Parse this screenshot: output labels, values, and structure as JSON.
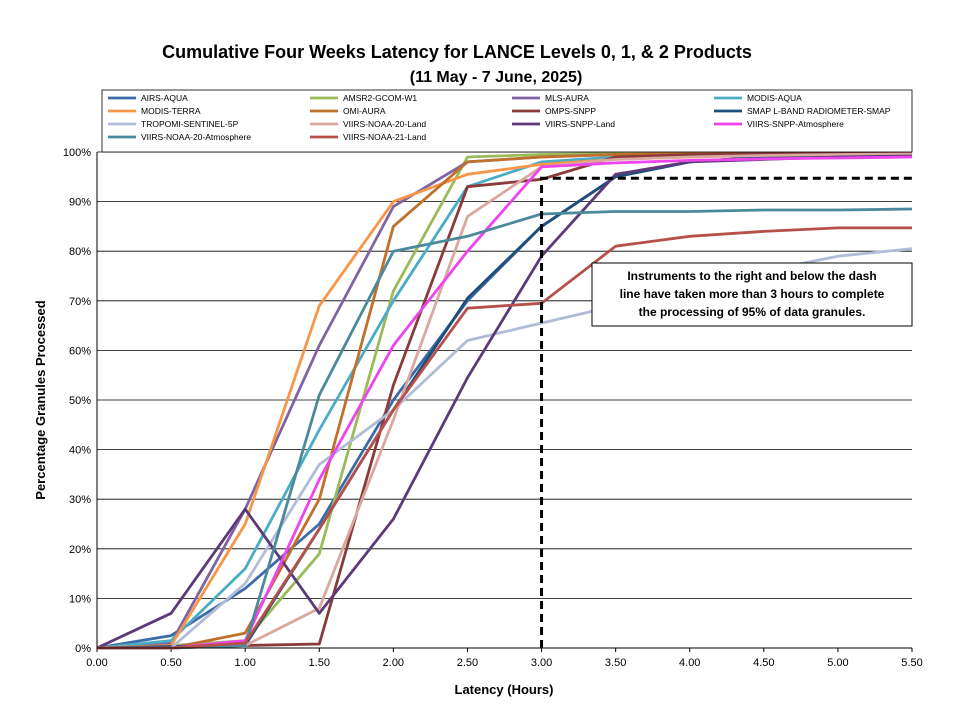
{
  "chart_data": {
    "type": "line",
    "title": "Cumulative Four Weeks Latency  for LANCE Levels 0, 1, & 2 Products",
    "subtitle": "(11  May   - 7  June,  2025)",
    "xlabel": "Latency (Hours)",
    "ylabel": "Percentage Granules Processed",
    "xlim": [
      0,
      5.5
    ],
    "ylim": [
      0,
      100
    ],
    "x_ticks": [
      "0.00",
      "0.50",
      "1.00",
      "1.50",
      "2.00",
      "2.50",
      "3.00",
      "3.50",
      "4.00",
      "4.50",
      "5.00",
      "5.50"
    ],
    "y_ticks": [
      "0%",
      "10%",
      "20%",
      "30%",
      "40%",
      "50%",
      "60%",
      "70%",
      "80%",
      "90%",
      "100%"
    ],
    "grid": "horizontal",
    "legend_position": "top",
    "x": [
      0,
      0.5,
      1.0,
      1.5,
      2.0,
      2.5,
      3.0,
      3.5,
      4.0,
      4.5,
      5.0,
      5.5
    ],
    "series": [
      {
        "name": "AIRS-AQUA",
        "color": "#3d6aa8",
        "values": [
          0,
          2.5,
          12,
          25,
          50,
          70,
          85,
          95,
          98,
          99,
          99.5,
          99.7
        ]
      },
      {
        "name": "AMSR2-GCOM-W1",
        "color": "#9bbb59",
        "values": [
          0,
          0.5,
          1.5,
          19,
          72,
          99,
          99.5,
          99.7,
          99.8,
          99.9,
          99.9,
          99.9
        ]
      },
      {
        "name": "MLS-AURA",
        "color": "#8064a2",
        "values": [
          0,
          1,
          28,
          61,
          89,
          98,
          99,
          99.5,
          99.7,
          99.8,
          99.9,
          99.9
        ]
      },
      {
        "name": "MODIS-AQUA",
        "color": "#4bacc6",
        "values": [
          0,
          1.5,
          16,
          44,
          70,
          93,
          98,
          99,
          99.5,
          99.7,
          99.8,
          99.9
        ]
      },
      {
        "name": "MODIS-TERRA",
        "color": "#f79646",
        "values": [
          0,
          0.5,
          25,
          69,
          90,
          95.5,
          97.5,
          98.5,
          99,
          99.3,
          99.5,
          99.6
        ]
      },
      {
        "name": "OMI-AURA",
        "color": "#c0702a",
        "values": [
          0,
          0,
          3,
          30,
          85,
          98,
          99,
          99.5,
          99.7,
          99.8,
          99.9,
          99.9
        ]
      },
      {
        "name": "OMPS-SNPP",
        "color": "#8b3a3a",
        "values": [
          0,
          0,
          0.5,
          0.8,
          53,
          93,
          94.5,
          99,
          99.5,
          99.7,
          99.8,
          99.9
        ]
      },
      {
        "name": "SMAP L-BAND RADIOMETER-SMAP",
        "color": "#1f4e79",
        "values": [
          0,
          0.3,
          0.5,
          24,
          48,
          70.5,
          85,
          95,
          98,
          99,
          99.3,
          99.5
        ]
      },
      {
        "name": "TROPOMI-SENTINEL-5P",
        "color": "#b0bcd8",
        "values": [
          0,
          0,
          13,
          37,
          48,
          62,
          65.5,
          69,
          73,
          76,
          79,
          80.5
        ]
      },
      {
        "name": "VIIRS-NOAA-20-Land",
        "color": "#dba8a0",
        "values": [
          0,
          0,
          0.5,
          8,
          46,
          87,
          97,
          98.5,
          99,
          99.3,
          99.5,
          99.6
        ]
      },
      {
        "name": "VIIRS-SNPP-Land",
        "color": "#5c3a7a",
        "values": [
          0,
          7,
          28,
          7,
          26,
          54.5,
          79,
          95.5,
          98,
          98.5,
          99,
          99.2
        ]
      },
      {
        "name": "VIIRS-SNPP-Atmosphere",
        "color": "#ee44ee",
        "values": [
          0,
          0,
          1.5,
          34,
          61,
          80,
          97,
          97.8,
          98.3,
          98.6,
          98.8,
          99
        ]
      },
      {
        "name": "VIIRS-NOAA-20-Atmosphere",
        "color": "#4a8a9a",
        "values": [
          0,
          0,
          0.5,
          51,
          80,
          83,
          87.5,
          88,
          88,
          88.3,
          88.3,
          88.5
        ]
      },
      {
        "name": "VIIRS-NOAA-21-Land",
        "color": "#b8504a",
        "values": [
          0,
          0,
          1,
          24,
          48,
          68.5,
          69.5,
          81,
          83,
          84,
          84.7,
          84.7
        ]
      }
    ],
    "threshold_line": {
      "x": 3.0,
      "y": 94.7,
      "x_end": 5.5
    },
    "annotation": [
      "Instruments to the right and below the dash",
      "line have taken more than 3 hours to complete",
      "the processing of 95% of data granules."
    ]
  }
}
